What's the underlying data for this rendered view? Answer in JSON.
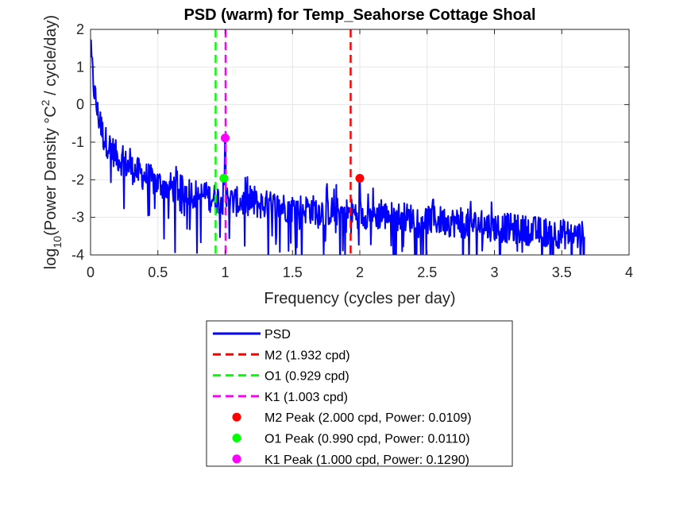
{
  "chart_data": {
    "type": "line",
    "title": "PSD (warm) for Temp_Seahorse Cottage Shoal",
    "xlabel": "Frequency (cycles per day)",
    "ylabel": {
      "prefix": "log",
      "subscript": "10",
      "mid": "(Power Density °C",
      "superscript": "2",
      "suffix": " / cycle/day)"
    },
    "xlim": [
      0,
      4
    ],
    "ylim": [
      -4,
      2
    ],
    "xticks": [
      "0",
      "0.5",
      "1",
      "1.5",
      "2",
      "2.5",
      "3",
      "3.5",
      "4"
    ],
    "yticks": [
      "-4",
      "-3",
      "-2",
      "-1",
      "0",
      "1",
      "2"
    ],
    "grid": true,
    "legend_position": "below-plot",
    "colors": {
      "psd": "#0000ff",
      "m2": "#ff0000",
      "o1": "#00ff00",
      "k1": "#ff00ff",
      "grid": "#e6e6e6",
      "axis": "#262626"
    },
    "series": [
      {
        "name": "PSD",
        "kind": "line",
        "x_range": [
          0.0,
          3.667
        ],
        "baseline": [
          [
            0.0,
            1.5
          ],
          [
            0.02,
            0.6
          ],
          [
            0.05,
            -0.2
          ],
          [
            0.1,
            -0.9
          ],
          [
            0.2,
            -1.4
          ],
          [
            0.3,
            -1.7
          ],
          [
            0.5,
            -2.1
          ],
          [
            0.8,
            -2.4
          ],
          [
            1.0,
            -2.55
          ],
          [
            1.5,
            -2.75
          ],
          [
            2.0,
            -2.9
          ],
          [
            2.5,
            -3.05
          ],
          [
            3.0,
            -3.25
          ],
          [
            3.667,
            -3.5
          ]
        ],
        "peaks": [
          {
            "x": 1.0,
            "y": -0.89
          },
          {
            "x": 2.0,
            "y": -1.96
          },
          {
            "x": 0.99,
            "y": -1.96
          }
        ]
      }
    ],
    "vlines": [
      {
        "name": "M2 (1.932 cpd)",
        "x": 1.932,
        "color_key": "m2"
      },
      {
        "name": "O1 (0.929 cpd)",
        "x": 0.929,
        "color_key": "o1"
      },
      {
        "name": "K1 (1.003 cpd)",
        "x": 1.003,
        "color_key": "k1"
      }
    ],
    "points": [
      {
        "name": "M2 Peak (2.000 cpd, Power: 0.0109)",
        "x": 2.0,
        "y": -1.962,
        "color_key": "m2"
      },
      {
        "name": "O1 Peak (0.990 cpd, Power: 0.0110)",
        "x": 0.99,
        "y": -1.959,
        "color_key": "o1"
      },
      {
        "name": "K1 Peak (1.000 cpd, Power: 0.1290)",
        "x": 1.0,
        "y": -0.889,
        "color_key": "k1"
      }
    ],
    "legend": [
      {
        "label": "PSD",
        "style": "line",
        "color_key": "psd"
      },
      {
        "label": "M2 (1.932 cpd)",
        "style": "dashed",
        "color_key": "m2"
      },
      {
        "label": "O1 (0.929 cpd)",
        "style": "dashed",
        "color_key": "o1"
      },
      {
        "label": "K1 (1.003 cpd)",
        "style": "dashed",
        "color_key": "k1"
      },
      {
        "label": "M2 Peak (2.000 cpd, Power: 0.0109)",
        "style": "marker",
        "color_key": "m2"
      },
      {
        "label": "O1 Peak (0.990 cpd, Power: 0.0110)",
        "style": "marker",
        "color_key": "o1"
      },
      {
        "label": "K1 Peak (1.000 cpd, Power: 0.1290)",
        "style": "marker",
        "color_key": "k1"
      }
    ]
  }
}
